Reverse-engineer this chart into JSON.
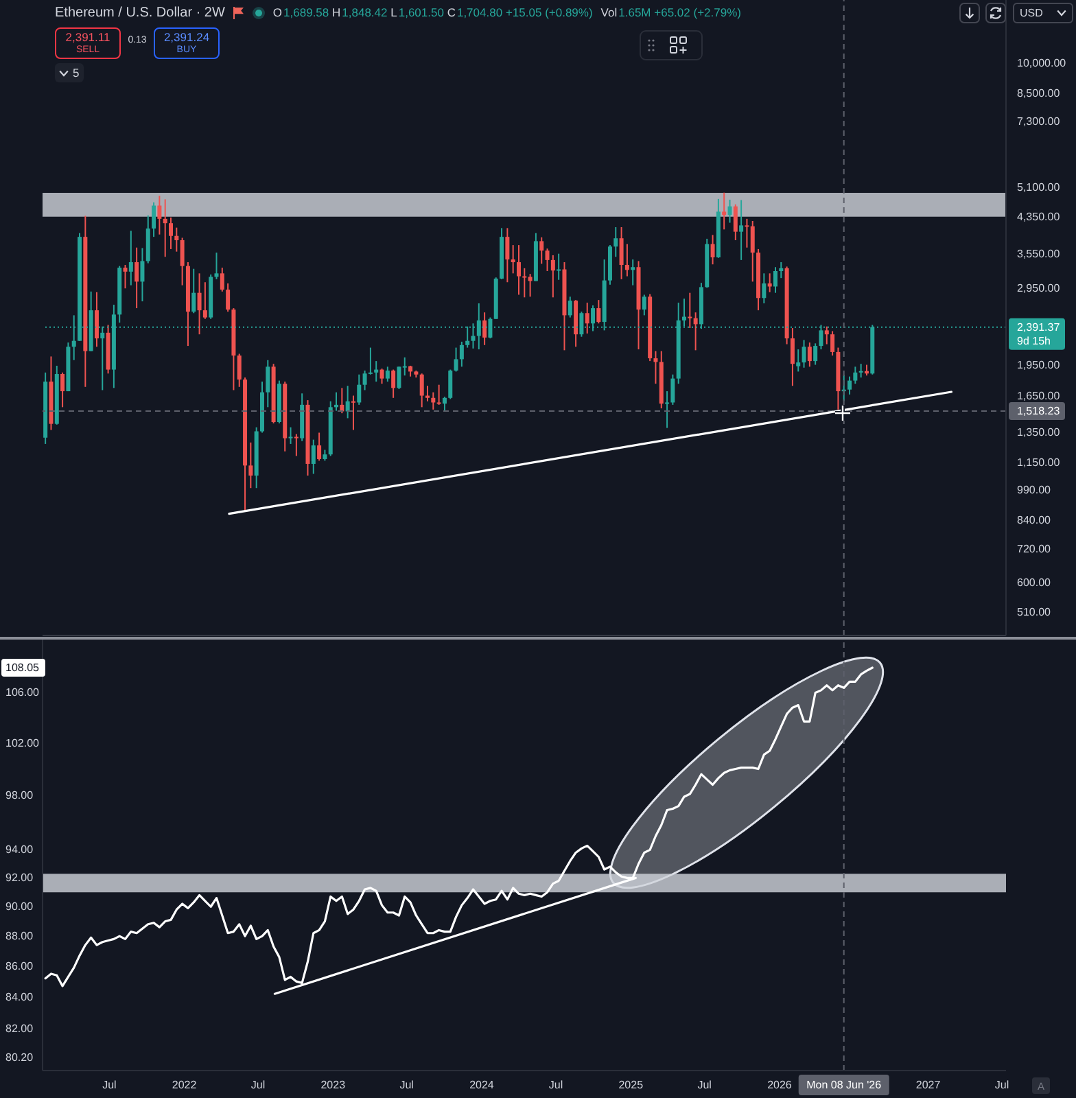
{
  "chart_data": [
    {
      "type": "candlestick",
      "title": "Ethereum / U.S. Dollar · 2W",
      "subtitle": "O1,689.58 H1,848.42 L1,601.50 C1,704.80 +15.05 (+0.89%)",
      "annotations": [
        "9d 15h",
        "Vol1.65M +65.02 (+2.79%)",
        "2,391.11",
        "SELL",
        "0.13",
        "2,391.24",
        "BUY",
        "5",
        "USD"
      ],
      "x": [
        "2021-01-25",
        "2021-02-08",
        "2021-02-22",
        "2021-03-08",
        "2021-03-22",
        "2021-04-05",
        "2021-04-19",
        "2021-05-03",
        "2021-05-17",
        "2021-05-31",
        "2021-06-14",
        "2021-06-28",
        "2021-07-12",
        "2021-07-26",
        "2021-08-09",
        "2021-08-23",
        "2021-09-06",
        "2021-09-20",
        "2021-10-04",
        "2021-10-18",
        "2021-11-01",
        "2021-11-15",
        "2021-11-29",
        "2021-12-13",
        "2021-12-27",
        "2022-01-10",
        "2022-01-24",
        "2022-02-07",
        "2022-02-21",
        "2022-03-07",
        "2022-03-21",
        "2022-04-04",
        "2022-04-18",
        "2022-05-02",
        "2022-05-16",
        "2022-05-30",
        "2022-06-13",
        "2022-06-27",
        "2022-07-11",
        "2022-07-25",
        "2022-08-08",
        "2022-08-22",
        "2022-09-05",
        "2022-09-19",
        "2022-10-03",
        "2022-10-17",
        "2022-10-31",
        "2022-11-14",
        "2022-11-28",
        "2022-12-12",
        "2022-12-26",
        "2023-01-09",
        "2023-01-23",
        "2023-02-06",
        "2023-02-20",
        "2023-03-06",
        "2023-03-20",
        "2023-04-03",
        "2023-04-17",
        "2023-05-01",
        "2023-05-15",
        "2023-05-29",
        "2023-06-12",
        "2023-06-26",
        "2023-07-10",
        "2023-07-24",
        "2023-08-07",
        "2023-08-21",
        "2023-09-04",
        "2023-09-18",
        "2023-10-02",
        "2023-10-16",
        "2023-10-30",
        "2023-11-13",
        "2023-11-27",
        "2023-12-11",
        "2023-12-25",
        "2024-01-08",
        "2024-01-22",
        "2024-02-05",
        "2024-02-19",
        "2024-03-04",
        "2024-03-18",
        "2024-04-01",
        "2024-04-15",
        "2024-04-29",
        "2024-05-13",
        "2024-05-27",
        "2024-06-10",
        "2024-06-24",
        "2024-07-08",
        "2024-07-22",
        "2024-08-05",
        "2024-08-19",
        "2024-09-02",
        "2024-09-16",
        "2024-09-30",
        "2024-10-14",
        "2024-10-28",
        "2024-11-11",
        "2024-11-25",
        "2024-12-09",
        "2024-12-23",
        "2025-01-06",
        "2025-01-20",
        "2025-02-03",
        "2025-02-17",
        "2025-03-03",
        "2025-03-17",
        "2025-03-31",
        "2025-04-14",
        "2025-04-28",
        "2025-05-12",
        "2025-05-26",
        "2025-06-09",
        "2025-06-23",
        "2025-07-07",
        "2025-07-21",
        "2025-08-04",
        "2025-08-18",
        "2025-09-01",
        "2025-09-15",
        "2025-09-29",
        "2025-10-13",
        "2025-10-27",
        "2025-11-10",
        "2025-11-24",
        "2025-12-08",
        "2025-12-22",
        "2026-01-05",
        "2026-01-19",
        "2026-02-02",
        "2026-02-16",
        "2026-03-02",
        "2026-03-16",
        "2026-03-30",
        "2026-04-13",
        "2026-04-27",
        "2026-05-11",
        "2026-05-25",
        "2026-06-08",
        "2026-06-22",
        "2026-07-06",
        "2026-07-20",
        "2026-08-03",
        "2026-08-17"
      ],
      "ohlc": [
        [
          1314,
          1870,
          1270,
          1780
        ],
        [
          1780,
          2040,
          1370,
          1416
        ],
        [
          1416,
          1940,
          1410,
          1855
        ],
        [
          1855,
          1870,
          1550,
          1690
        ],
        [
          1690,
          2200,
          1690,
          2150
        ],
        [
          2150,
          2550,
          2000,
          2220
        ],
        [
          2220,
          3980,
          2220,
          3900
        ],
        [
          3900,
          4370,
          1730,
          2100
        ],
        [
          2100,
          2900,
          2100,
          2620
        ],
        [
          2620,
          2890,
          2150,
          2250
        ],
        [
          2250,
          2400,
          1700,
          2320
        ],
        [
          2320,
          2420,
          1860,
          1900
        ],
        [
          1900,
          2700,
          1720,
          2560
        ],
        [
          2560,
          3330,
          2450,
          3300
        ],
        [
          3300,
          3350,
          2950,
          3230
        ],
        [
          3230,
          4030,
          3000,
          3400
        ],
        [
          3400,
          3680,
          2650,
          3060
        ],
        [
          3060,
          3670,
          2750,
          3420
        ],
        [
          3420,
          4380,
          3380,
          4080
        ],
        [
          4080,
          4700,
          3900,
          4620
        ],
        [
          4620,
          4870,
          3950,
          4300
        ],
        [
          4300,
          4780,
          3500,
          4200
        ],
        [
          4200,
          4330,
          3650,
          3920
        ],
        [
          3920,
          4100,
          3600,
          3830
        ],
        [
          3830,
          3880,
          3000,
          3330
        ],
        [
          3330,
          3400,
          2160,
          2600
        ],
        [
          2600,
          3280,
          2580,
          2880
        ],
        [
          2880,
          3200,
          2300,
          2620
        ],
        [
          2620,
          3050,
          2500,
          2520
        ],
        [
          2520,
          3180,
          2500,
          3140
        ],
        [
          3140,
          3580,
          3100,
          3200
        ],
        [
          3200,
          3300,
          2900,
          2930
        ],
        [
          2930,
          3030,
          2600,
          2630
        ],
        [
          2630,
          2650,
          1700,
          2050
        ],
        [
          2050,
          2070,
          1730,
          1800
        ],
        [
          1800,
          1820,
          880,
          1130
        ],
        [
          1130,
          1280,
          1000,
          1070
        ],
        [
          1070,
          1390,
          1000,
          1360
        ],
        [
          1360,
          1780,
          1350,
          1680
        ],
        [
          1680,
          2000,
          1550,
          1930
        ],
        [
          1930,
          1960,
          1420,
          1430
        ],
        [
          1430,
          1790,
          1420,
          1760
        ],
        [
          1760,
          1780,
          1220,
          1310
        ],
        [
          1310,
          1390,
          1270,
          1320
        ],
        [
          1320,
          1340,
          1190,
          1310
        ],
        [
          1310,
          1670,
          1290,
          1570
        ],
        [
          1570,
          1610,
          1070,
          1140
        ],
        [
          1140,
          1300,
          1080,
          1260
        ],
        [
          1260,
          1350,
          1160,
          1170
        ],
        [
          1170,
          1230,
          1160,
          1200
        ],
        [
          1200,
          1600,
          1190,
          1550
        ],
        [
          1550,
          1680,
          1520,
          1570
        ],
        [
          1570,
          1720,
          1500,
          1515
        ],
        [
          1515,
          1740,
          1460,
          1600
        ],
        [
          1600,
          1650,
          1370,
          1590
        ],
        [
          1590,
          1850,
          1570,
          1750
        ],
        [
          1750,
          1890,
          1700,
          1860
        ],
        [
          1860,
          2140,
          1850,
          1870
        ],
        [
          1870,
          1990,
          1780,
          1900
        ],
        [
          1900,
          1910,
          1760,
          1810
        ],
        [
          1810,
          1930,
          1780,
          1890
        ],
        [
          1890,
          1900,
          1630,
          1720
        ],
        [
          1720,
          1930,
          1710,
          1930
        ],
        [
          1930,
          2030,
          1840,
          1935
        ],
        [
          1935,
          1940,
          1830,
          1880
        ],
        [
          1880,
          1890,
          1820,
          1850
        ],
        [
          1850,
          1860,
          1550,
          1650
        ],
        [
          1650,
          1740,
          1600,
          1630
        ],
        [
          1630,
          1680,
          1530,
          1590
        ],
        [
          1590,
          1750,
          1570,
          1580
        ],
        [
          1580,
          1640,
          1520,
          1630
        ],
        [
          1630,
          1900,
          1620,
          1890
        ],
        [
          1890,
          2140,
          1880,
          2010
        ],
        [
          2010,
          2210,
          1930,
          2170
        ],
        [
          2170,
          2400,
          2140,
          2220
        ],
        [
          2220,
          2440,
          2130,
          2280
        ],
        [
          2280,
          2720,
          2120,
          2480
        ],
        [
          2480,
          2590,
          2170,
          2260
        ],
        [
          2260,
          2520,
          2250,
          2500
        ],
        [
          2500,
          3130,
          2500,
          3110
        ],
        [
          3110,
          4090,
          3100,
          3900
        ],
        [
          3900,
          4090,
          3050,
          3450
        ],
        [
          3450,
          3730,
          3200,
          3400
        ],
        [
          3400,
          3730,
          2850,
          3150
        ],
        [
          3150,
          3290,
          2810,
          3140
        ],
        [
          3140,
          3190,
          2820,
          3070
        ],
        [
          3070,
          3980,
          3070,
          3810
        ],
        [
          3810,
          3890,
          3370,
          3620
        ],
        [
          3620,
          3660,
          3240,
          3440
        ],
        [
          3440,
          3530,
          2810,
          3250
        ],
        [
          3250,
          3560,
          3090,
          3270
        ],
        [
          3270,
          3400,
          2110,
          2550
        ],
        [
          2550,
          2820,
          2520,
          2760
        ],
        [
          2760,
          2770,
          2150,
          2300
        ],
        [
          2300,
          2600,
          2270,
          2580
        ],
        [
          2580,
          2730,
          2310,
          2440
        ],
        [
          2440,
          2690,
          2340,
          2650
        ],
        [
          2650,
          2770,
          2440,
          2460
        ],
        [
          2460,
          3450,
          2350,
          3080
        ],
        [
          3080,
          3730,
          3010,
          3700
        ],
        [
          3700,
          4110,
          3500,
          3870
        ],
        [
          3870,
          4110,
          3100,
          3350
        ],
        [
          3350,
          3750,
          3150,
          3260
        ],
        [
          3260,
          3450,
          3000,
          3310
        ],
        [
          3310,
          3420,
          2120,
          2630
        ],
        [
          2630,
          2850,
          2550,
          2820
        ],
        [
          2820,
          2860,
          1990,
          2020
        ],
        [
          2020,
          2100,
          1760,
          1980
        ],
        [
          1980,
          2100,
          1540,
          1580
        ],
        [
          1580,
          1690,
          1385,
          1590
        ],
        [
          1590,
          1850,
          1570,
          1810
        ],
        [
          1810,
          2730,
          1760,
          2480
        ],
        [
          2480,
          2790,
          2400,
          2530
        ],
        [
          2530,
          2880,
          2380,
          2510
        ],
        [
          2510,
          2590,
          2110,
          2430
        ],
        [
          2430,
          3040,
          2370,
          2970
        ],
        [
          2970,
          3860,
          2960,
          3750
        ],
        [
          3750,
          3940,
          3360,
          3490
        ],
        [
          3490,
          4790,
          3480,
          4470
        ],
        [
          4470,
          4955,
          4060,
          4390
        ],
        [
          4390,
          4770,
          4210,
          4600
        ],
        [
          4600,
          4650,
          3830,
          4010
        ],
        [
          4010,
          4760,
          3440,
          4150
        ],
        [
          4150,
          4300,
          3680,
          4130
        ],
        [
          4130,
          4250,
          3060,
          3580
        ],
        [
          3580,
          3650,
          2620,
          2800
        ],
        [
          2800,
          3200,
          2720,
          3030
        ],
        [
          3030,
          3200,
          2890,
          2980
        ],
        [
          2980,
          3310,
          2880,
          3240
        ],
        [
          3240,
          3400,
          3120,
          3290
        ],
        [
          3290,
          3320,
          2180,
          2250
        ],
        [
          2250,
          2380,
          1740,
          1960
        ],
        [
          1935,
          2120,
          1880,
          1975
        ],
        [
          1975,
          2230,
          1920,
          2150
        ],
        [
          2150,
          2200,
          1930,
          1990
        ],
        [
          1990,
          2190,
          1950,
          2160
        ],
        [
          2160,
          2420,
          2120,
          2350
        ],
        [
          2350,
          2400,
          2180,
          2300
        ],
        [
          2300,
          2340,
          2050,
          2090
        ],
        [
          2090,
          2140,
          1530,
          1690
        ],
        [
          1689.58,
          1848.42,
          1601.5,
          1704.8
        ],
        [
          1705,
          1830,
          1660,
          1790
        ],
        [
          1790,
          1930,
          1760,
          1870
        ],
        [
          1870,
          1960,
          1820,
          1885
        ],
        [
          1885,
          1950,
          1840,
          1860
        ],
        [
          1860,
          2420,
          1850,
          2391.37
        ]
      ],
      "colors": [
        "#26a69a",
        "#ef5350",
        "#26a69a",
        "#ef5350",
        "#26a69a",
        "#26a69a",
        "#26a69a",
        "#ef5350",
        "#26a69a",
        "#ef5350",
        "#26a69a",
        "#ef5350",
        "#26a69a",
        "#26a69a",
        "#ef5350",
        "#26a69a",
        "#ef5350",
        "#26a69a",
        "#26a69a",
        "#26a69a",
        "#ef5350",
        "#ef5350",
        "#ef5350",
        "#ef5350",
        "#ef5350",
        "#ef5350",
        "#26a69a",
        "#ef5350",
        "#ef5350",
        "#26a69a",
        "#26a69a",
        "#ef5350",
        "#ef5350",
        "#ef5350",
        "#ef5350",
        "#ef5350",
        "#ef5350",
        "#26a69a",
        "#26a69a",
        "#26a69a",
        "#ef5350",
        "#26a69a",
        "#ef5350",
        "#26a69a",
        "#ef5350",
        "#26a69a",
        "#ef5350",
        "#26a69a",
        "#ef5350",
        "#26a69a",
        "#26a69a",
        "#26a69a",
        "#ef5350",
        "#26a69a",
        "#ef5350",
        "#26a69a",
        "#26a69a",
        "#26a69a",
        "#26a69a",
        "#ef5350",
        "#26a69a",
        "#ef5350",
        "#26a69a",
        "#26a69a",
        "#ef5350",
        "#ef5350",
        "#ef5350",
        "#ef5350",
        "#ef5350",
        "#ef5350",
        "#26a69a",
        "#26a69a",
        "#26a69a",
        "#26a69a",
        "#26a69a",
        "#26a69a",
        "#26a69a",
        "#ef5350",
        "#26a69a",
        "#26a69a",
        "#26a69a",
        "#ef5350",
        "#ef5350",
        "#ef5350",
        "#ef5350",
        "#ef5350",
        "#26a69a",
        "#ef5350",
        "#ef5350",
        "#ef5350",
        "#26a69a",
        "#ef5350",
        "#26a69a",
        "#ef5350",
        "#26a69a",
        "#ef5350",
        "#26a69a",
        "#ef5350",
        "#26a69a",
        "#26a69a",
        "#26a69a",
        "#ef5350",
        "#ef5350",
        "#26a69a",
        "#ef5350",
        "#26a69a",
        "#ef5350",
        "#ef5350",
        "#ef5350",
        "#26a69a",
        "#26a69a",
        "#26a69a",
        "#26a69a",
        "#ef5350",
        "#ef5350",
        "#26a69a",
        "#26a69a",
        "#ef5350",
        "#26a69a",
        "#ef5350",
        "#26a69a",
        "#ef5350",
        "#26a69a",
        "#ef5350",
        "#ef5350",
        "#ef5350",
        "#26a69a",
        "#ef5350",
        "#26a69a",
        "#26a69a",
        "#ef5350",
        "#ef5350",
        "#26a69a",
        "#26a69a",
        "#ef5350",
        "#26a69a",
        "#26a69a",
        "#ef5350",
        "#ef5350",
        "#ef5350",
        "#26a69a",
        "#26a69a",
        "#26a69a",
        "#26a69a",
        "#ef5350",
        "#26a69a"
      ],
      "series": [
        {
          "type": "line",
          "x": [
            "2022-04-21",
            "2027-02-27"
          ],
          "values": [
            870,
            1684
          ],
          "color": "#ffffff"
        }
      ],
      "xlim": [
        "2021-01-18",
        "2027-07-11"
      ],
      "ylim": [
        450,
        14070
      ],
      "log": "y",
      "yticks": [
        {
          "value": 510,
          "label": "510.00"
        },
        {
          "value": 600,
          "label": "600.00"
        },
        {
          "value": 720,
          "label": "720.00"
        },
        {
          "value": 840,
          "label": "840.00"
        },
        {
          "value": 990,
          "label": "990.00"
        },
        {
          "value": 1150,
          "label": "1,150.00"
        },
        {
          "value": 1350,
          "label": "1,350.00"
        },
        {
          "value": 1650,
          "label": "1,650.00"
        },
        {
          "value": 1950,
          "label": "1,950.00"
        },
        {
          "value": 2950,
          "label": "2,950.00"
        },
        {
          "value": 3550,
          "label": "3,550.00"
        },
        {
          "value": 4350,
          "label": "4,350.00"
        },
        {
          "value": 5100,
          "label": "5,100.00"
        },
        {
          "value": 7300,
          "label": "7,300.00"
        },
        {
          "value": 8500,
          "label": "8,500.00"
        },
        {
          "value": 10000,
          "label": "10,000.00"
        }
      ],
      "ref_lines": [
        {
          "axis": "y",
          "value": 2391.37,
          "label": "2,391.37",
          "color": "#26a69a",
          "line_style": "dotted"
        },
        {
          "axis": "y",
          "value": 1518.23,
          "label": "1,518.23",
          "color": "#5d606b",
          "line_style": "dashed"
        },
        {
          "axis": "x",
          "value": "2026-06-08",
          "color": "#5d606b",
          "line_style": "dashed"
        }
      ],
      "bands": [
        {
          "axis": "y",
          "from": 4350,
          "to": 4950,
          "color": "#d1d4dc"
        }
      ],
      "tick_labels": "y"
    },
    {
      "type": "line",
      "x": [
        "2021-01-25",
        "2021-02-08",
        "2021-02-22",
        "2021-03-08",
        "2021-03-22",
        "2021-04-05",
        "2021-04-19",
        "2021-05-03",
        "2021-05-17",
        "2021-05-31",
        "2021-06-14",
        "2021-06-28",
        "2021-07-12",
        "2021-07-26",
        "2021-08-09",
        "2021-08-23",
        "2021-09-06",
        "2021-09-20",
        "2021-10-04",
        "2021-10-18",
        "2021-11-01",
        "2021-11-15",
        "2021-11-29",
        "2021-12-13",
        "2021-12-27",
        "2022-01-10",
        "2022-01-24",
        "2022-02-07",
        "2022-02-21",
        "2022-03-07",
        "2022-03-21",
        "2022-04-04",
        "2022-04-18",
        "2022-05-02",
        "2022-05-16",
        "2022-05-30",
        "2022-06-13",
        "2022-06-27",
        "2022-07-11",
        "2022-07-25",
        "2022-08-08",
        "2022-08-22",
        "2022-09-05",
        "2022-09-19",
        "2022-10-03",
        "2022-10-17",
        "2022-10-31",
        "2022-11-14",
        "2022-11-28",
        "2022-12-12",
        "2022-12-26",
        "2023-01-09",
        "2023-01-23",
        "2023-02-06",
        "2023-02-20",
        "2023-03-06",
        "2023-03-20",
        "2023-04-03",
        "2023-04-17",
        "2023-05-01",
        "2023-05-15",
        "2023-05-29",
        "2023-06-12",
        "2023-06-26",
        "2023-07-10",
        "2023-07-24",
        "2023-08-07",
        "2023-08-21",
        "2023-09-04",
        "2023-09-18",
        "2023-10-02",
        "2023-10-16",
        "2023-10-30",
        "2023-11-13",
        "2023-11-27",
        "2023-12-11",
        "2023-12-25",
        "2024-01-08",
        "2024-01-22",
        "2024-02-05",
        "2024-02-19",
        "2024-03-04",
        "2024-03-18",
        "2024-04-01",
        "2024-04-15",
        "2024-04-29",
        "2024-05-13",
        "2024-05-27",
        "2024-06-10",
        "2024-06-24",
        "2024-07-08",
        "2024-07-22",
        "2024-08-05",
        "2024-08-19",
        "2024-09-02",
        "2024-09-16",
        "2024-09-30",
        "2024-10-14",
        "2024-10-28",
        "2024-11-11",
        "2024-11-25",
        "2024-12-09",
        "2024-12-23",
        "2025-01-06",
        "2025-01-20",
        "2025-02-03",
        "2025-02-17",
        "2025-03-03",
        "2025-03-17",
        "2025-03-31",
        "2025-04-14",
        "2025-04-28",
        "2025-05-12",
        "2025-05-26",
        "2025-06-09",
        "2025-06-23",
        "2025-07-07",
        "2025-07-21",
        "2025-08-04",
        "2025-08-18",
        "2025-09-01",
        "2025-09-15",
        "2025-09-29",
        "2025-10-13",
        "2025-10-27",
        "2025-11-10",
        "2025-11-24",
        "2025-12-08",
        "2025-12-22",
        "2026-01-05",
        "2026-01-19",
        "2026-02-02",
        "2026-02-16",
        "2026-03-02",
        "2026-03-16",
        "2026-03-30",
        "2026-04-13",
        "2026-04-27",
        "2026-05-11",
        "2026-05-25",
        "2026-06-08",
        "2026-06-22",
        "2026-07-06",
        "2026-07-20",
        "2026-08-03",
        "2026-08-17"
      ],
      "series": [
        {
          "color": "#ffffff",
          "values": [
            85.2,
            85.5,
            85.4,
            84.7,
            85.3,
            85.9,
            86.7,
            87.4,
            87.9,
            87.4,
            87.6,
            87.7,
            87.8,
            88.0,
            87.8,
            88.3,
            88.2,
            88.5,
            88.8,
            88.9,
            88.6,
            89.0,
            89.1,
            89.8,
            90.2,
            89.9,
            90.3,
            90.8,
            90.4,
            90.0,
            90.6,
            89.4,
            88.2,
            88.3,
            88.8,
            88.0,
            88.7,
            87.8,
            88.0,
            88.4,
            87.3,
            86.6,
            85.1,
            85.3,
            85.0,
            84.9,
            86.3,
            88.2,
            88.4,
            89.0,
            90.7,
            90.4,
            90.7,
            89.5,
            89.8,
            90.4,
            91.2,
            91.3,
            91.1,
            90.1,
            89.6,
            89.6,
            89.4,
            90.7,
            90.3,
            89.4,
            88.8,
            88.2,
            88.2,
            88.4,
            88.3,
            88.3,
            89.3,
            90.1,
            90.6,
            91.2,
            90.7,
            90.2,
            90.4,
            90.5,
            91.1,
            90.5,
            91.3,
            90.9,
            90.8,
            90.9,
            90.8,
            90.7,
            91.0,
            91.6,
            91.8,
            92.5,
            93.2,
            93.8,
            94.1,
            94.3,
            93.9,
            93.5,
            92.6,
            92.8,
            92.4,
            92.1,
            92.0,
            92.0,
            93.0,
            93.8,
            94.0,
            95.0,
            95.8,
            96.9,
            97.0,
            97.2,
            97.9,
            98.1,
            98.8,
            99.6,
            99.2,
            98.8,
            99.3,
            99.7,
            99.9,
            100.0,
            100.1,
            100.1,
            100.1,
            100.0,
            101.1,
            101.4,
            102.3,
            103.3,
            104.3,
            104.8,
            105.0,
            103.7,
            103.7,
            106.0,
            106.2,
            106.6,
            106.2,
            106.6,
            106.4,
            106.9,
            106.9,
            107.5,
            107.8,
            108.05
          ]
        },
        {
          "type": "line",
          "x": [
            "2022-08-11",
            "2025-01-13"
          ],
          "values": [
            84.2,
            92.0
          ],
          "color": "#ffffff"
        }
      ],
      "xlim": [
        "2021-01-18",
        "2027-07-11"
      ],
      "xticks": [
        {
          "value": "2021-07",
          "label": "Jul"
        },
        "2022",
        {
          "value": "2022-07",
          "label": "Jul"
        },
        "2023",
        {
          "value": "2023-07",
          "label": "Jul"
        },
        "2024",
        {
          "value": "2024-07",
          "label": "Jul"
        },
        "2025",
        {
          "value": "2025-07",
          "label": "Jul"
        },
        "2026",
        "2027",
        {
          "value": "2027-07",
          "label": "Jul"
        }
      ],
      "ylim": [
        79.4,
        110.4
      ],
      "log": "y",
      "yticks": [
        {
          "value": 80.2,
          "label": "80.20"
        },
        {
          "value": 82,
          "label": "82.00"
        },
        {
          "value": 84,
          "label": "84.00"
        },
        {
          "value": 86,
          "label": "86.00"
        },
        {
          "value": 88,
          "label": "88.00"
        },
        {
          "value": 90,
          "label": "90.00"
        },
        {
          "value": 92,
          "label": "92.00"
        },
        {
          "value": 94,
          "label": "94.00"
        },
        {
          "value": 98,
          "label": "98.00"
        },
        {
          "value": 102,
          "label": "102.00"
        },
        {
          "value": 106,
          "label": "106.00"
        }
      ],
      "ref_lines": [
        {
          "axis": "x",
          "value": "2026-06-08",
          "label": "Mon 08 Jun '26",
          "color": "#5d606b",
          "line_style": "dashed"
        }
      ],
      "bands": [
        {
          "axis": "y",
          "from": 91.0,
          "to": 92.3,
          "color": "#d1d4dc"
        }
      ],
      "annotations": [
        {
          "text": "108.05",
          "y": 108.05
        },
        "A"
      ]
    }
  ]
}
